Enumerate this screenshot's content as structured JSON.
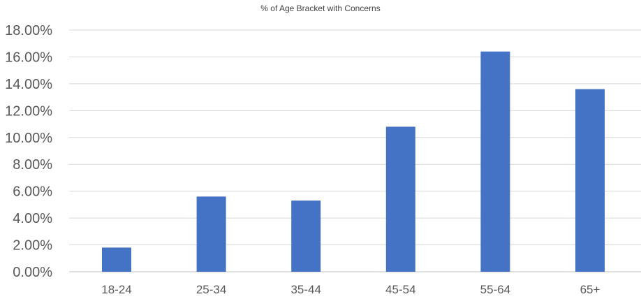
{
  "chart_data": {
    "type": "bar",
    "title": "% of Age Bracket with Concerns",
    "xlabel": "",
    "ylabel": "",
    "categories": [
      "18-24",
      "25-34",
      "35-44",
      "45-54",
      "55-64",
      "65+"
    ],
    "values": [
      1.8,
      5.6,
      5.3,
      10.8,
      16.4,
      13.6
    ],
    "ylim": [
      0,
      18
    ],
    "yticks": [
      0,
      2,
      4,
      6,
      8,
      10,
      12,
      14,
      16,
      18
    ],
    "ytick_labels": [
      "0.00%",
      "2.00%",
      "4.00%",
      "6.00%",
      "8.00%",
      "10.00%",
      "12.00%",
      "14.00%",
      "16.00%",
      "18.00%"
    ],
    "grid": true,
    "legend": "none",
    "bar_color": "#4472c4"
  }
}
